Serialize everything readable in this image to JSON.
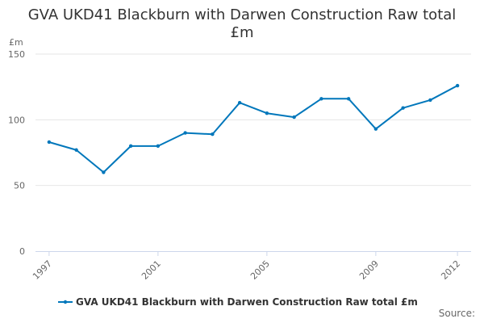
{
  "chart_data": {
    "type": "line",
    "title_line1": "GVA UKD41 Blackburn with Darwen Construction Raw total",
    "title_line2": "£m",
    "y_unit": "£m",
    "ylim": [
      0,
      150
    ],
    "y_ticks": [
      0,
      50,
      100,
      150
    ],
    "x_tick_labels": [
      "1997",
      "2001",
      "2005",
      "2009",
      "2012"
    ],
    "grid": true,
    "legend_position": "bottom",
    "series": [
      {
        "name": "GVA UKD41 Blackburn with Darwen Construction Raw total £m",
        "color": "#0077bb",
        "x": [
          1997,
          1998,
          1999,
          2000,
          2001,
          2002,
          2003,
          2004,
          2005,
          2006,
          2007,
          2008,
          2009,
          2010,
          2011,
          2012
        ],
        "values": [
          83,
          77,
          60,
          80,
          80,
          90,
          89,
          113,
          105,
          102,
          116,
          116,
          93,
          109,
          115,
          126
        ]
      }
    ],
    "source": "Source:"
  }
}
